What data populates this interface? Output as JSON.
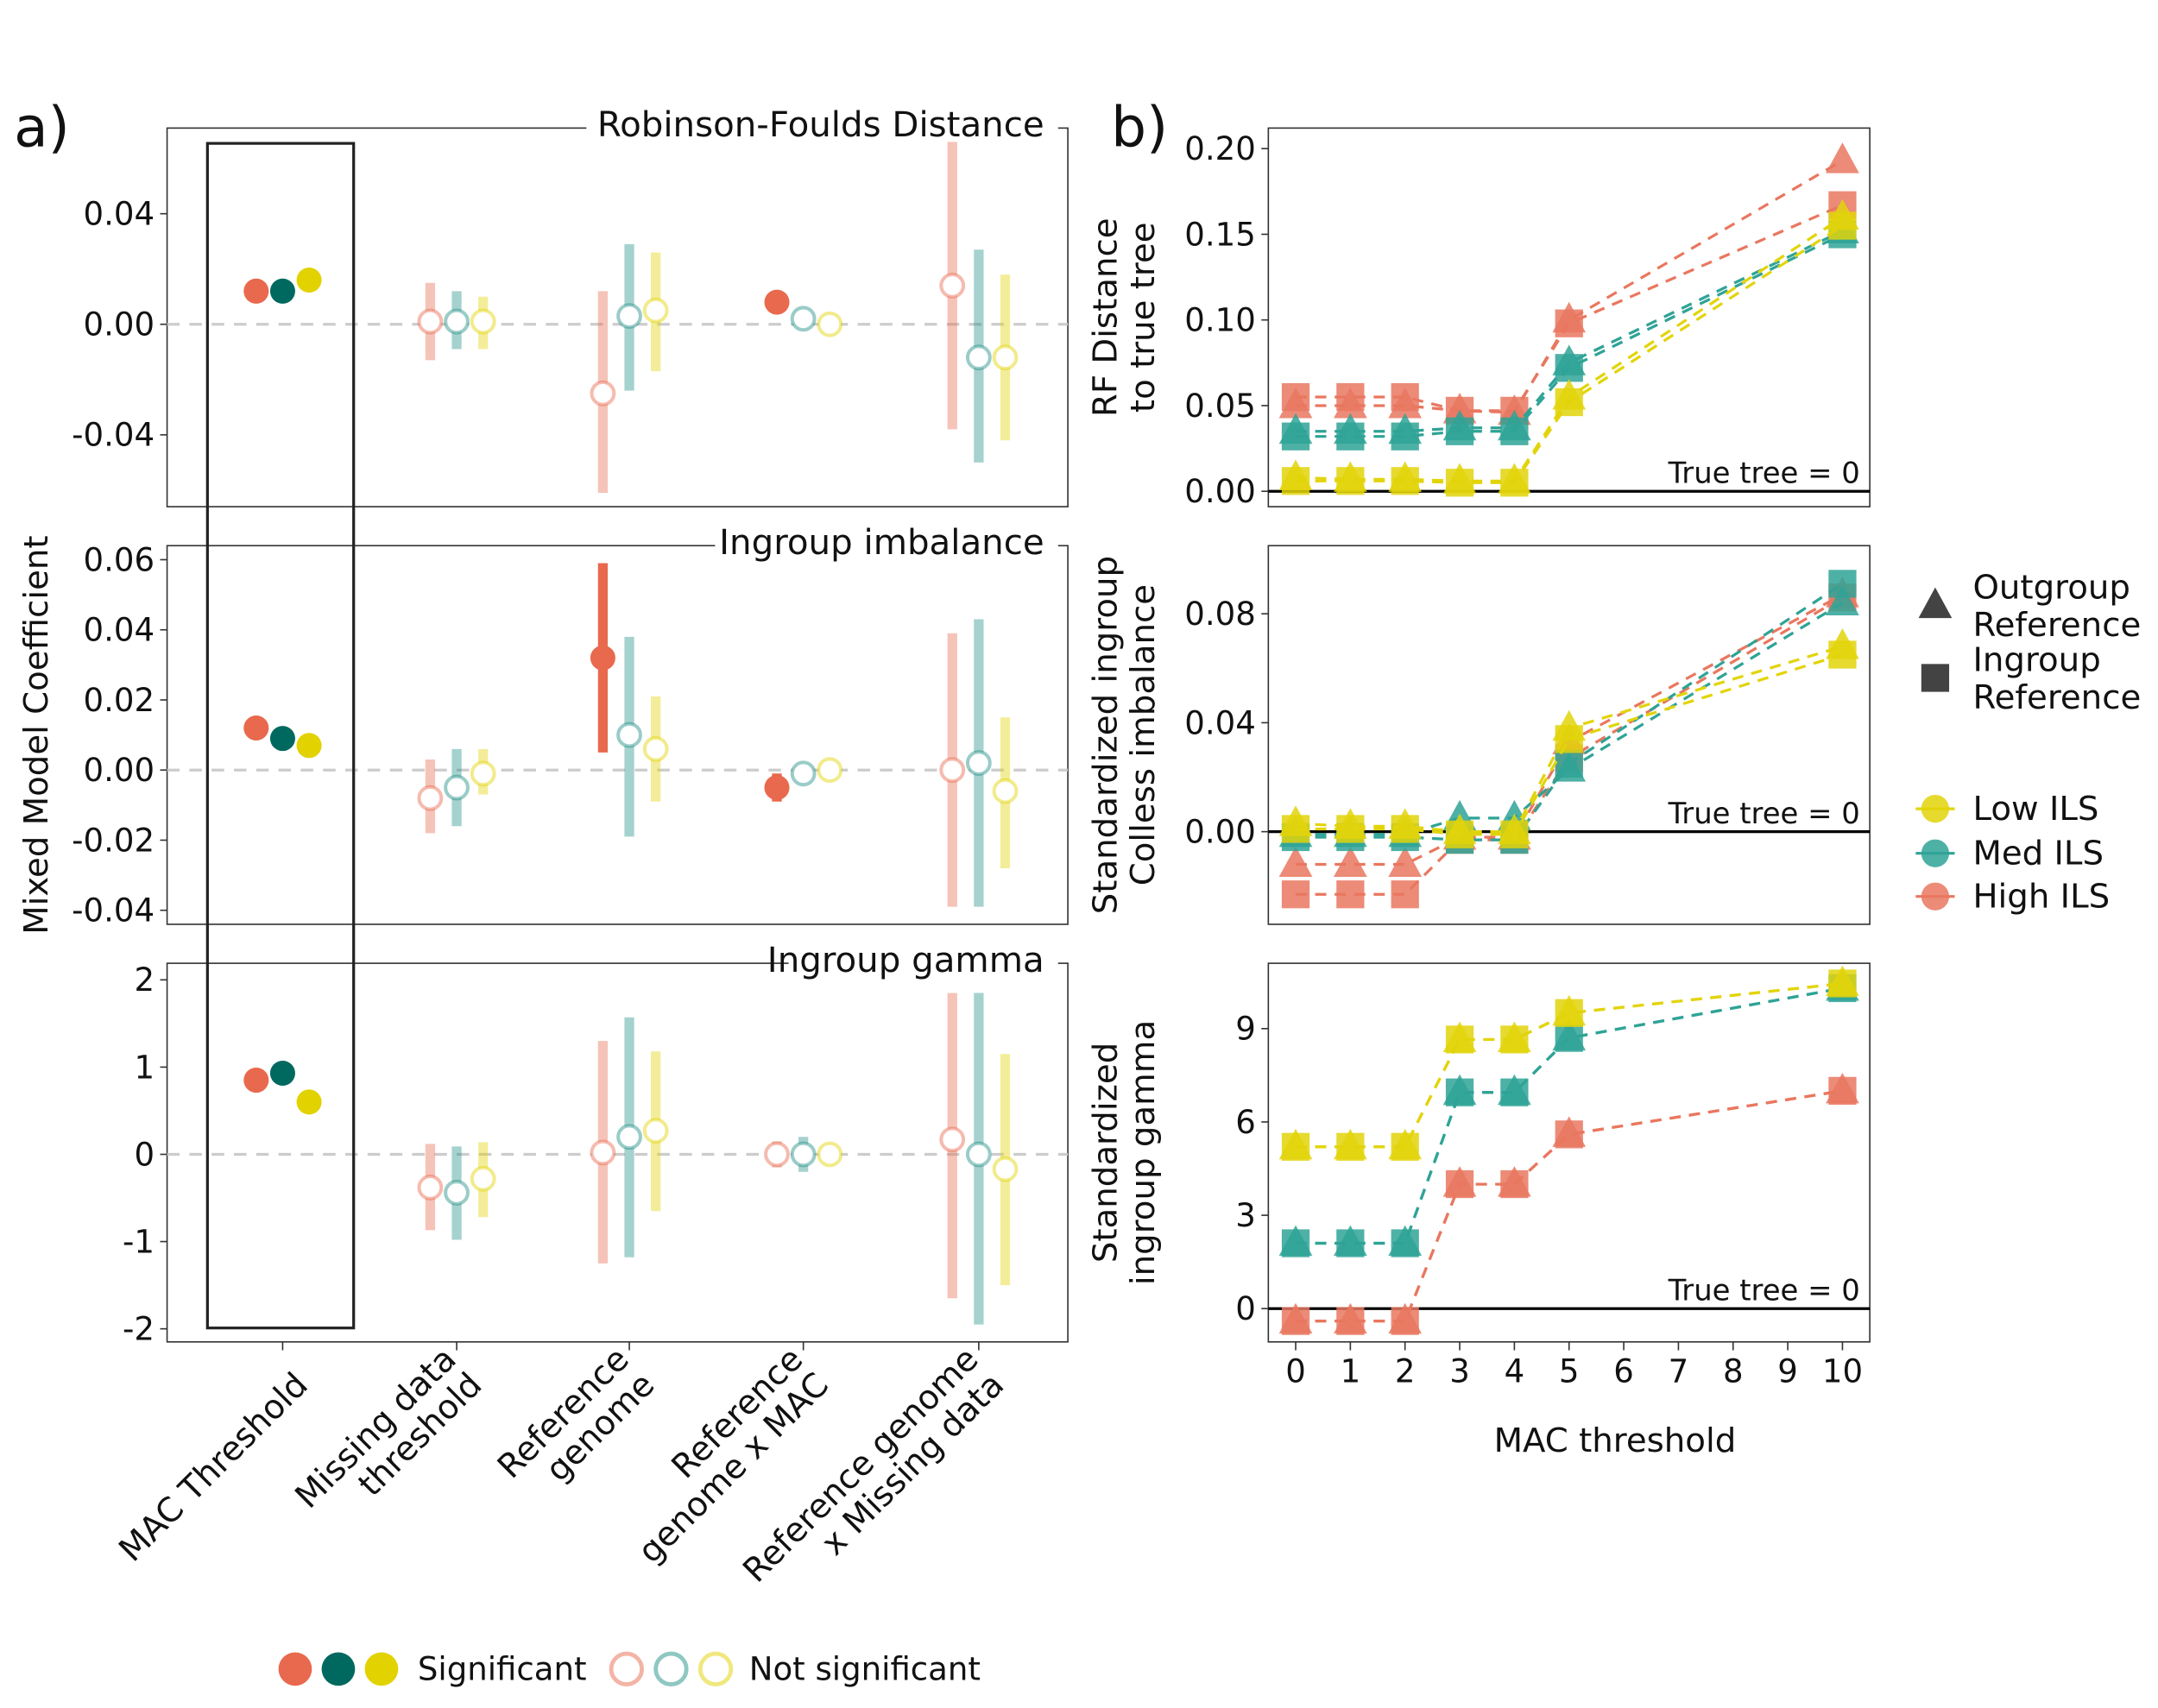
{
  "panel_labels": {
    "a": "a)",
    "b": "b)"
  },
  "colors": {
    "high": "#E8694D",
    "med": "#1F8F84",
    "low": "#E2D200",
    "high_sig": "#E8694D",
    "med_sig": "#00695F",
    "low_sig": "#E2D200"
  },
  "chart_data": [
    {
      "type": "errorbar-dot",
      "panel": "a",
      "ylabel": "Mixed Model Coefficient",
      "categories": [
        "MAC Threshold",
        "Missing data threshold",
        "Reference genome",
        "Reference genome x MAC",
        "Reference genome x Missing data"
      ],
      "category_lines": [
        [
          "MAC Threshold"
        ],
        [
          "Missing data",
          "threshold"
        ],
        [
          "Reference",
          "genome"
        ],
        [
          "Reference",
          "genome x MAC"
        ],
        [
          "Reference genome",
          "x Missing data"
        ]
      ],
      "groups": [
        "High ILS",
        "Med ILS",
        "Low ILS"
      ],
      "highlighted_category": "MAC Threshold",
      "legend": {
        "significant": "Significant",
        "not_significant": "Not significant"
      },
      "facets": [
        {
          "title": "Robinson-Foulds Distance",
          "ylim": [
            -0.066,
            0.071
          ],
          "ticks": [
            "0.04",
            "0.00",
            "-0.04"
          ],
          "tick_values": [
            0.04,
            0,
            -0.04
          ],
          "points": [
            [
              {
                "est": 0.012,
                "lo": 0.011,
                "hi": 0.013,
                "sig": true
              },
              {
                "est": 0.012,
                "lo": 0.011,
                "hi": 0.013,
                "sig": true
              },
              {
                "est": 0.016,
                "lo": 0.015,
                "hi": 0.017,
                "sig": true
              }
            ],
            [
              {
                "est": 0.001,
                "lo": -0.013,
                "hi": 0.015,
                "sig": false
              },
              {
                "est": 0.001,
                "lo": -0.009,
                "hi": 0.012,
                "sig": false
              },
              {
                "est": 0.001,
                "lo": -0.009,
                "hi": 0.01,
                "sig": false
              }
            ],
            [
              {
                "est": -0.025,
                "lo": -0.061,
                "hi": 0.012,
                "sig": false
              },
              {
                "est": 0.003,
                "lo": -0.024,
                "hi": 0.029,
                "sig": false
              },
              {
                "est": 0.005,
                "lo": -0.017,
                "hi": 0.026,
                "sig": false
              }
            ],
            [
              {
                "est": 0.008,
                "lo": 0.004,
                "hi": 0.012,
                "sig": true
              },
              {
                "est": 0.002,
                "lo": 0.0,
                "hi": 0.004,
                "sig": false
              },
              {
                "est": 0.0,
                "lo": -0.001,
                "hi": 0.001,
                "sig": false
              }
            ],
            [
              {
                "est": 0.014,
                "lo": -0.038,
                "hi": 0.066,
                "sig": false
              },
              {
                "est": -0.012,
                "lo": -0.05,
                "hi": 0.027,
                "sig": false
              },
              {
                "est": -0.012,
                "lo": -0.042,
                "hi": 0.018,
                "sig": false
              }
            ]
          ]
        },
        {
          "title": "Ingroup imbalance",
          "ylim": [
            -0.044,
            0.064
          ],
          "ticks": [
            "0.06",
            "0.04",
            "0.02",
            "0.00",
            "-0.02",
            "-0.04"
          ],
          "tick_values": [
            0.06,
            0.04,
            0.02,
            0,
            -0.02,
            -0.04
          ],
          "points": [
            [
              {
                "est": 0.012,
                "lo": 0.011,
                "hi": 0.013,
                "sig": true
              },
              {
                "est": 0.009,
                "lo": 0.008,
                "hi": 0.01,
                "sig": true
              },
              {
                "est": 0.007,
                "lo": 0.006,
                "hi": 0.008,
                "sig": true
              }
            ],
            [
              {
                "est": -0.008,
                "lo": -0.018,
                "hi": 0.003,
                "sig": false
              },
              {
                "est": -0.005,
                "lo": -0.016,
                "hi": 0.006,
                "sig": false
              },
              {
                "est": -0.001,
                "lo": -0.007,
                "hi": 0.006,
                "sig": false
              }
            ],
            [
              {
                "est": 0.032,
                "lo": 0.005,
                "hi": 0.059,
                "sig": true
              },
              {
                "est": 0.01,
                "lo": -0.019,
                "hi": 0.038,
                "sig": false
              },
              {
                "est": 0.006,
                "lo": -0.009,
                "hi": 0.021,
                "sig": false
              }
            ],
            [
              {
                "est": -0.005,
                "lo": -0.009,
                "hi": -0.001,
                "sig": true
              },
              {
                "est": -0.001,
                "lo": -0.003,
                "hi": 0.001,
                "sig": false
              },
              {
                "est": 0.0,
                "lo": -0.001,
                "hi": 0.001,
                "sig": false
              }
            ],
            [
              {
                "est": 0.0,
                "lo": -0.039,
                "hi": 0.039,
                "sig": false
              },
              {
                "est": 0.002,
                "lo": -0.039,
                "hi": 0.043,
                "sig": false
              },
              {
                "est": -0.006,
                "lo": -0.028,
                "hi": 0.015,
                "sig": false
              }
            ]
          ]
        },
        {
          "title": "Ingroup gamma",
          "ylim": [
            -2.15,
            2.19
          ],
          "ticks": [
            "2",
            "1",
            "0",
            "-1",
            "-2"
          ],
          "tick_values": [
            2,
            1,
            0,
            -1,
            -2
          ],
          "points": [
            [
              {
                "est": 0.85,
                "lo": 0.83,
                "hi": 0.87,
                "sig": true
              },
              {
                "est": 0.93,
                "lo": 0.91,
                "hi": 0.95,
                "sig": true
              },
              {
                "est": 0.6,
                "lo": 0.58,
                "hi": 0.62,
                "sig": true
              }
            ],
            [
              {
                "est": -0.38,
                "lo": -0.87,
                "hi": 0.12,
                "sig": false
              },
              {
                "est": -0.44,
                "lo": -0.98,
                "hi": 0.09,
                "sig": false
              },
              {
                "est": -0.28,
                "lo": -0.72,
                "hi": 0.14,
                "sig": false
              }
            ],
            [
              {
                "est": 0.02,
                "lo": -1.25,
                "hi": 1.3,
                "sig": false
              },
              {
                "est": 0.2,
                "lo": -1.18,
                "hi": 1.57,
                "sig": false
              },
              {
                "est": 0.27,
                "lo": -0.65,
                "hi": 1.18,
                "sig": false
              }
            ],
            [
              {
                "est": 0.0,
                "lo": -0.15,
                "hi": 0.15,
                "sig": false
              },
              {
                "est": 0.0,
                "lo": -0.2,
                "hi": 0.2,
                "sig": false
              },
              {
                "est": 0.0,
                "lo": -0.05,
                "hi": 0.05,
                "sig": false
              }
            ],
            [
              {
                "est": 0.17,
                "lo": -1.65,
                "hi": 1.85,
                "sig": false
              },
              {
                "est": 0.0,
                "lo": -1.95,
                "hi": 1.85,
                "sig": false
              },
              {
                "est": -0.17,
                "lo": -1.5,
                "hi": 1.15,
                "sig": false
              }
            ]
          ]
        }
      ]
    },
    {
      "type": "line",
      "panel": "b",
      "xlabel": "MAC threshold",
      "x": [
        0,
        1,
        2,
        3,
        4,
        5,
        10
      ],
      "xticks": [
        "0",
        "1",
        "2",
        "3",
        "4",
        "5",
        "6",
        "7",
        "8",
        "9",
        "10"
      ],
      "xlim": [
        -0.5,
        10.5
      ],
      "reference_note": "True tree = 0",
      "legend": {
        "shape_items": [
          [
            "Outgroup",
            "Reference"
          ],
          [
            "Ingroup",
            "Reference"
          ]
        ],
        "color_items": [
          "Low ILS",
          "Med ILS",
          "High ILS"
        ]
      },
      "facets": [
        {
          "ylabel": [
            "RF Distance",
            "to true tree"
          ],
          "ylim": [
            -0.009,
            0.212
          ],
          "ticks": [
            "0.20",
            "0.15",
            "0.10",
            "0.05",
            "0.00"
          ],
          "tick_values": [
            0.2,
            0.15,
            0.1,
            0.05,
            0
          ],
          "series": [
            {
              "ils": "High ILS",
              "reference": "Outgroup",
              "values": [
                0.05,
                0.05,
                0.05,
                0.047,
                0.046,
                0.1,
                0.193
              ]
            },
            {
              "ils": "High ILS",
              "reference": "Ingroup",
              "values": [
                0.055,
                0.055,
                0.055,
                0.047,
                0.047,
                0.098,
                0.167
              ]
            },
            {
              "ils": "Med ILS",
              "reference": "Outgroup",
              "values": [
                0.035,
                0.035,
                0.035,
                0.037,
                0.037,
                0.075,
                0.152
              ]
            },
            {
              "ils": "Med ILS",
              "reference": "Ingroup",
              "values": [
                0.032,
                0.032,
                0.032,
                0.035,
                0.035,
                0.072,
                0.15
              ]
            },
            {
              "ils": "Low ILS",
              "reference": "Outgroup",
              "values": [
                0.008,
                0.007,
                0.007,
                0.006,
                0.006,
                0.055,
                0.16
              ]
            },
            {
              "ils": "Low ILS",
              "reference": "Ingroup",
              "values": [
                0.006,
                0.006,
                0.006,
                0.005,
                0.005,
                0.052,
                0.155
              ]
            }
          ]
        },
        {
          "ylabel": [
            "Standardized ingroup",
            "Colless imbalance"
          ],
          "ylim": [
            -0.034,
            0.105
          ],
          "ticks": [
            "0.08",
            "0.04",
            "0.00"
          ],
          "tick_values": [
            0.08,
            0.04,
            0
          ],
          "series": [
            {
              "ils": "High ILS",
              "reference": "Outgroup",
              "values": [
                -0.012,
                -0.012,
                -0.012,
                -0.002,
                -0.002,
                0.033,
                0.087
              ]
            },
            {
              "ils": "High ILS",
              "reference": "Ingroup",
              "values": [
                -0.023,
                -0.023,
                -0.023,
                -0.003,
                -0.003,
                0.027,
                0.086
              ]
            },
            {
              "ils": "Med ILS",
              "reference": "Outgroup",
              "values": [
                -0.001,
                -0.001,
                -0.001,
                0.005,
                0.005,
                0.023,
                0.084
              ]
            },
            {
              "ils": "Med ILS",
              "reference": "Ingroup",
              "values": [
                -0.002,
                -0.002,
                -0.002,
                -0.003,
                -0.003,
                0.025,
                0.091
              ]
            },
            {
              "ils": "Low ILS",
              "reference": "Outgroup",
              "values": [
                0.003,
                0.002,
                0.002,
                0.0,
                0.0,
                0.038,
                0.068
              ]
            },
            {
              "ils": "Low ILS",
              "reference": "Ingroup",
              "values": [
                0.001,
                0.001,
                0.001,
                -0.001,
                -0.001,
                0.034,
                0.065
              ]
            }
          ]
        },
        {
          "ylabel": [
            "Standardized",
            "ingroup gamma"
          ],
          "ylim": [
            -1.07,
            11.1
          ],
          "ticks": [
            "9",
            "6",
            "3",
            "0"
          ],
          "tick_values": [
            9,
            6,
            3,
            0
          ],
          "series": [
            {
              "ils": "High ILS",
              "reference": "Outgroup",
              "values": [
                -0.4,
                -0.4,
                -0.4,
                4.0,
                4.0,
                5.6,
                7.0
              ]
            },
            {
              "ils": "High ILS",
              "reference": "Ingroup",
              "values": [
                -0.4,
                -0.4,
                -0.4,
                4.0,
                4.0,
                5.6,
                7.0
              ]
            },
            {
              "ils": "Med ILS",
              "reference": "Outgroup",
              "values": [
                2.1,
                2.1,
                2.1,
                6.95,
                6.95,
                8.7,
                10.3
              ]
            },
            {
              "ils": "Med ILS",
              "reference": "Ingroup",
              "values": [
                2.1,
                2.1,
                2.1,
                6.95,
                6.95,
                8.7,
                10.3
              ]
            },
            {
              "ils": "Low ILS",
              "reference": "Outgroup",
              "values": [
                5.2,
                5.2,
                5.2,
                8.65,
                8.65,
                9.5,
                10.45
              ]
            },
            {
              "ils": "Low ILS",
              "reference": "Ingroup",
              "values": [
                5.2,
                5.2,
                5.2,
                8.65,
                8.65,
                9.5,
                10.45
              ]
            }
          ]
        }
      ]
    }
  ]
}
